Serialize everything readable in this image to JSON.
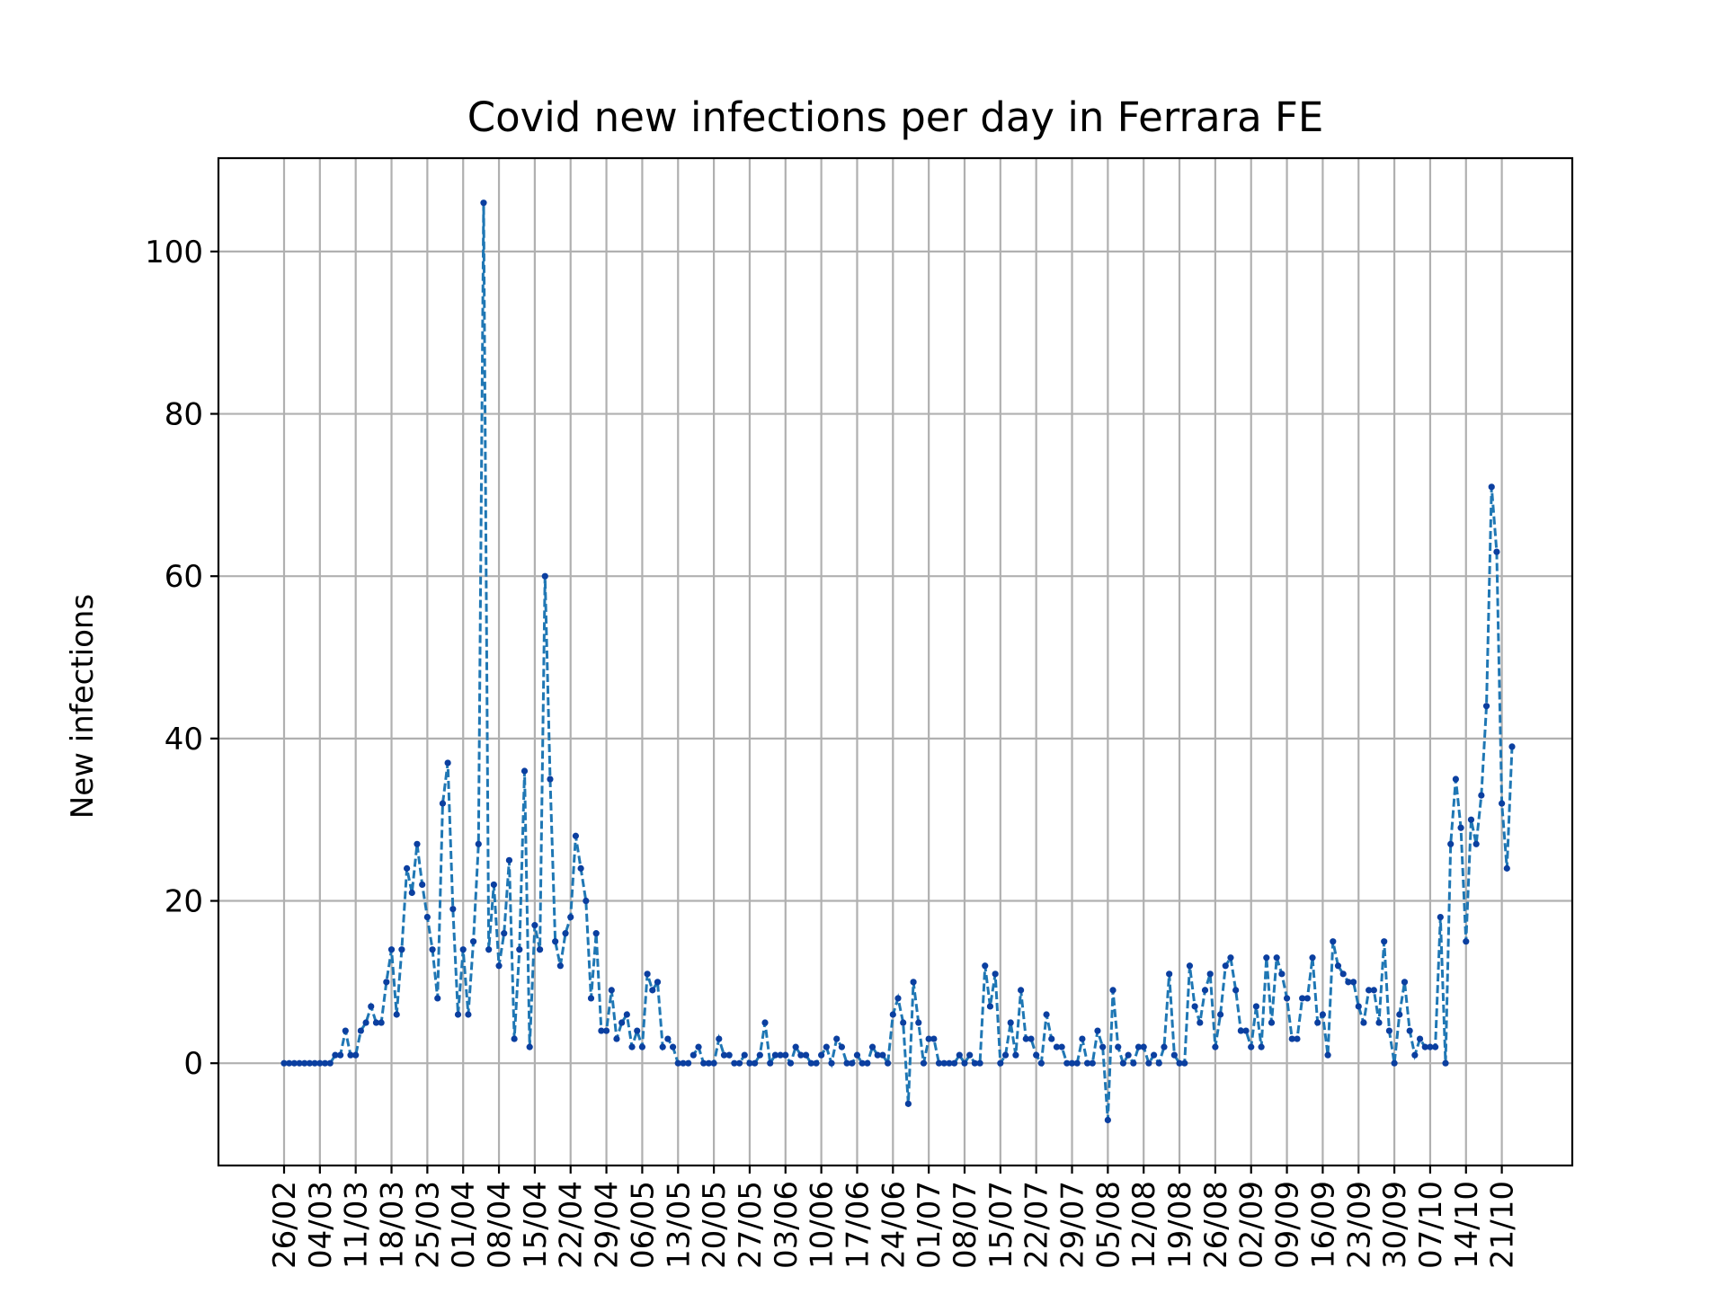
{
  "chart_data": {
    "type": "line",
    "title": "Covid new infections per day in Ferrara FE",
    "xlabel": "",
    "ylabel": "New infections",
    "ylim": [
      -12.6,
      111.5
    ],
    "y_ticks": [
      0,
      20,
      40,
      60,
      80,
      100
    ],
    "grid": true,
    "line_style": "dashed",
    "marker": "point",
    "color": "#1f77b4",
    "marker_color": "#0b3fa0",
    "x_start": "26/02",
    "x_ticks": [
      "26/02",
      "04/03",
      "11/03",
      "18/03",
      "25/03",
      "01/04",
      "08/04",
      "15/04",
      "22/04",
      "29/04",
      "06/05",
      "13/05",
      "20/05",
      "27/05",
      "03/06",
      "10/06",
      "17/06",
      "24/06",
      "01/07",
      "08/07",
      "15/07",
      "22/07",
      "29/07",
      "05/08",
      "12/08",
      "19/08",
      "26/08",
      "02/09",
      "09/09",
      "16/09",
      "23/09",
      "30/09",
      "07/10",
      "14/10",
      "21/10"
    ],
    "series": [
      {
        "values": [
          0,
          0,
          0,
          0,
          0,
          0,
          0,
          0,
          0,
          0,
          1,
          1,
          4,
          1,
          1,
          4,
          5,
          7,
          5,
          5,
          10,
          14,
          6,
          14,
          24,
          21,
          27,
          22,
          18,
          14,
          8,
          32,
          37,
          19,
          6,
          14,
          6,
          15,
          27,
          106,
          14,
          22,
          12,
          16,
          25,
          3,
          14,
          36,
          2,
          17,
          14,
          60,
          35,
          15,
          12,
          16,
          18,
          28,
          24,
          20,
          8,
          16,
          4,
          4,
          9,
          3,
          5,
          6,
          2,
          4,
          2,
          11,
          9,
          10,
          2,
          3,
          2,
          0,
          0,
          0,
          1,
          2,
          0,
          0,
          0,
          3,
          1,
          1,
          0,
          0,
          1,
          0,
          0,
          1,
          5,
          0,
          1,
          1,
          1,
          0,
          2,
          1,
          1,
          0,
          0,
          1,
          2,
          0,
          3,
          2,
          0,
          0,
          1,
          0,
          0,
          2,
          1,
          1,
          0,
          6,
          8,
          5,
          -5,
          10,
          5,
          0,
          3,
          3,
          0,
          0,
          0,
          0,
          1,
          0,
          1,
          0,
          0,
          12,
          7,
          11,
          0,
          1,
          5,
          1,
          9,
          3,
          3,
          1,
          0,
          6,
          3,
          2,
          2,
          0,
          0,
          0,
          3,
          0,
          0,
          4,
          2,
          -7,
          9,
          2,
          0,
          1,
          0,
          2,
          2,
          0,
          1,
          0,
          2,
          11,
          1,
          0,
          0,
          12,
          7,
          5,
          9,
          11,
          2,
          6,
          12,
          13,
          9,
          4,
          4,
          2,
          7,
          2,
          13,
          5,
          13,
          11,
          8,
          3,
          3,
          8,
          8,
          13,
          5,
          6,
          1,
          15,
          12,
          11,
          10,
          10,
          7,
          5,
          9,
          9,
          5,
          15,
          4,
          0,
          6,
          10,
          4,
          1,
          3,
          2,
          2,
          2,
          18,
          0,
          27,
          35,
          29,
          15,
          30,
          27,
          33,
          44,
          71,
          63,
          32,
          24,
          39
        ]
      }
    ]
  }
}
